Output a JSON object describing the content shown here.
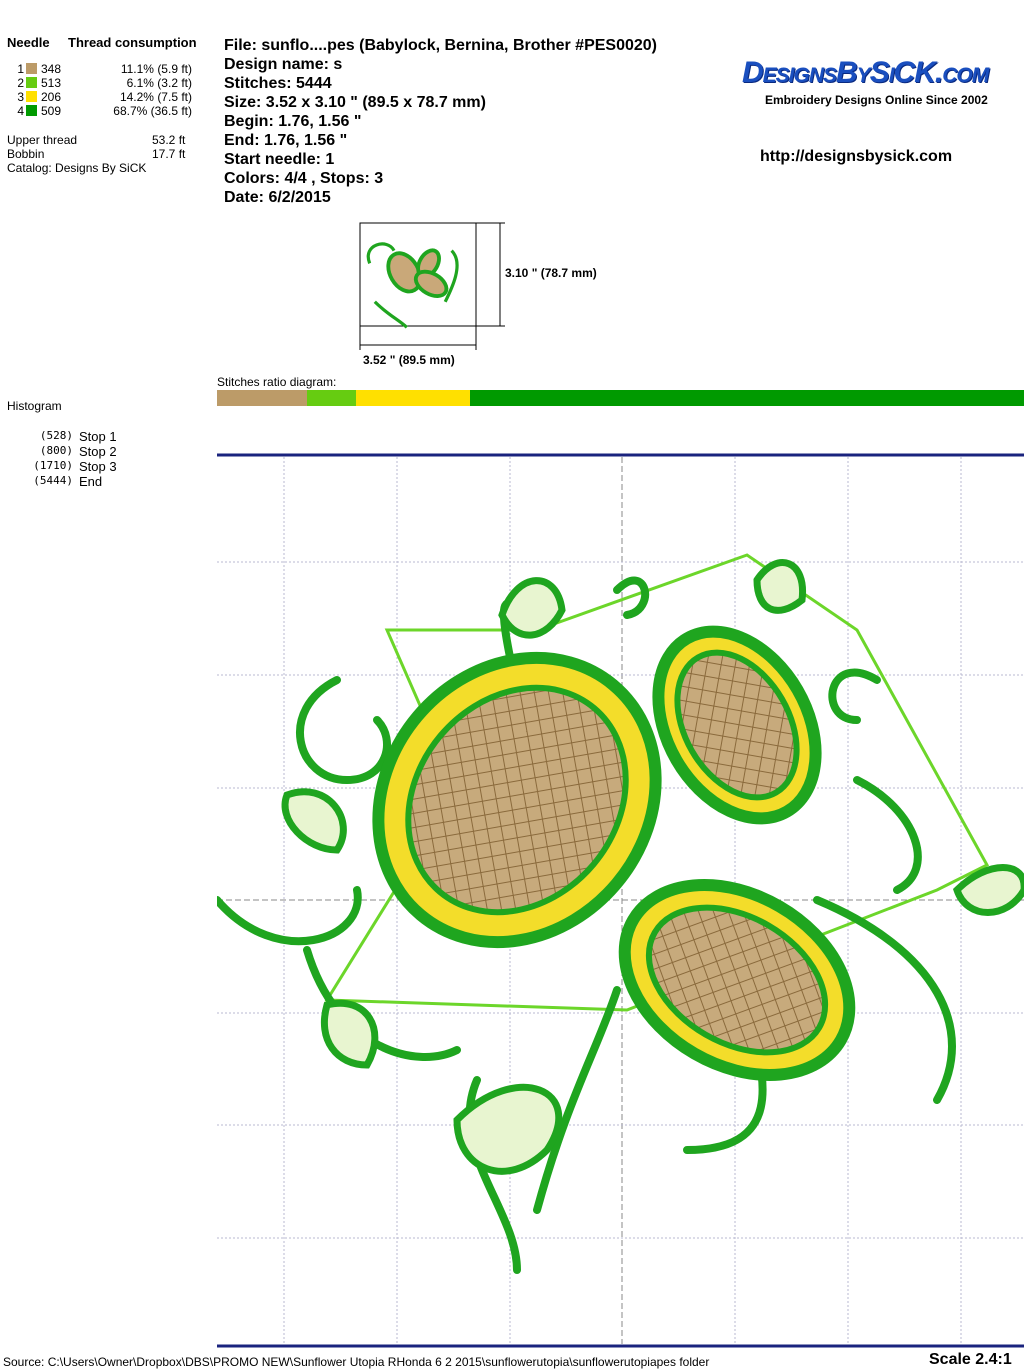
{
  "left": {
    "needle_header": "Needle",
    "thread_header": "Thread consumption",
    "threads": [
      {
        "needle": "1",
        "code": "348",
        "pct": "11.1% (5.9 ft)",
        "color": "#BC9B68"
      },
      {
        "needle": "2",
        "code": "513",
        "pct": "6.1% (3.2 ft)",
        "color": "#66CC11"
      },
      {
        "needle": "3",
        "code": "206",
        "pct": "14.2% (7.5 ft)",
        "color": "#FFE000"
      },
      {
        "needle": "4",
        "code": "509",
        "pct": "68.7% (36.5 ft)",
        "color": "#009A00"
      }
    ],
    "upper_label": "Upper thread",
    "upper_value": "53.2 ft",
    "bobbin_label": "Bobbin",
    "bobbin_value": "17.7 ft",
    "catalog": "Catalog: Designs By SiCK",
    "histogram": "Histogram",
    "stops": [
      {
        "count": "(528)",
        "label": "Stop 1"
      },
      {
        "count": "(800)",
        "label": "Stop 2"
      },
      {
        "count": "(1710)",
        "label": "Stop 3"
      },
      {
        "count": "(5444)",
        "label": "End"
      }
    ]
  },
  "info": {
    "file": "File: sunflo....pes  (Babylock, Bernina, Brother #PES0020)",
    "design_name": "Design name: s",
    "stitches": "Stitches: 5444",
    "size": "Size: 3.52 x 3.10 \" (89.5 x 78.7 mm)",
    "begin": "Begin: 1.76, 1.56 \"",
    "end": "End: 1.76, 1.56 \"",
    "start_needle": "Start needle: 1",
    "colors": "Colors: 4/4 , Stops: 3",
    "date": "Date: 6/2/2015"
  },
  "brand": {
    "logo": "DesignsBySiCK.com",
    "tagline": "Embroidery Designs Online Since 2002",
    "url": "http://designsbysick.com"
  },
  "thumb": {
    "height": "3.10 \" (78.7 mm)",
    "width": "3.52 \" (89.5 mm)"
  },
  "ratio": {
    "label": "Stitches ratio diagram:",
    "segments": [
      11.1,
      6.1,
      14.2,
      68.7
    ]
  },
  "footer": {
    "source": "Source: C:\\Users\\Owner\\Dropbox\\DBS\\PROMO NEW\\Sunflower Utopia  RHonda 6 2 2015\\sunflowerutopia\\sunflowerutopiapes folder",
    "scale": "Scale 2.4:1"
  }
}
